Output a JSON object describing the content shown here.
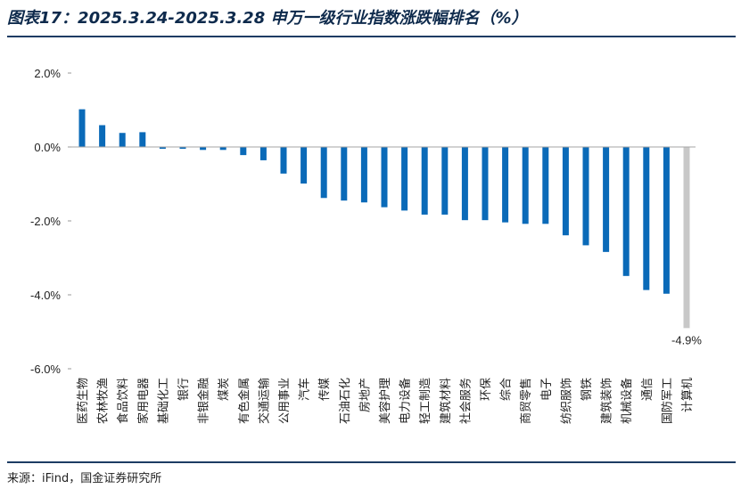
{
  "title": "图表17：2025.3.24-2025.3.28 申万一级行业指数涨跌幅排名（%）",
  "source": "来源：iFind，国金证券研究所",
  "chart_data": {
    "type": "bar",
    "categories": [
      "医药生物",
      "农林牧渔",
      "食品饮料",
      "家用电器",
      "基础化工",
      "银行",
      "非银金融",
      "煤炭",
      "有色金属",
      "交通运输",
      "公用事业",
      "汽车",
      "传媒",
      "石油石化",
      "房地产",
      "美容护理",
      "电力设备",
      "轻工制造",
      "建筑材料",
      "社会服务",
      "环保",
      "综合",
      "商贸零售",
      "电子",
      "纺织服饰",
      "钢铁",
      "建筑装饰",
      "机械设备",
      "通信",
      "国防军工",
      "计算机"
    ],
    "values": [
      1.02,
      0.59,
      0.38,
      0.4,
      -0.05,
      -0.05,
      -0.08,
      -0.08,
      -0.22,
      -0.36,
      -0.72,
      -0.99,
      -1.38,
      -1.45,
      -1.5,
      -1.63,
      -1.72,
      -1.83,
      -1.83,
      -1.98,
      -1.98,
      -2.04,
      -2.08,
      -2.08,
      -2.39,
      -2.66,
      -2.84,
      -3.49,
      -3.87,
      -3.97,
      -4.9
    ],
    "ylim": [
      -6,
      2
    ],
    "yticks": [
      "2.0%",
      "0.0%",
      "-2.0%",
      "-4.0%",
      "-6.0%"
    ],
    "ytick_values": [
      2,
      0,
      -2,
      -4,
      -6
    ],
    "bar_color": "#0a6ab8",
    "highlight_color": "#c8c8c8",
    "highlight_index": 30,
    "data_labels": [
      {
        "index": 30,
        "text": "-4.9%"
      }
    ],
    "grid": false,
    "legend": "none"
  }
}
